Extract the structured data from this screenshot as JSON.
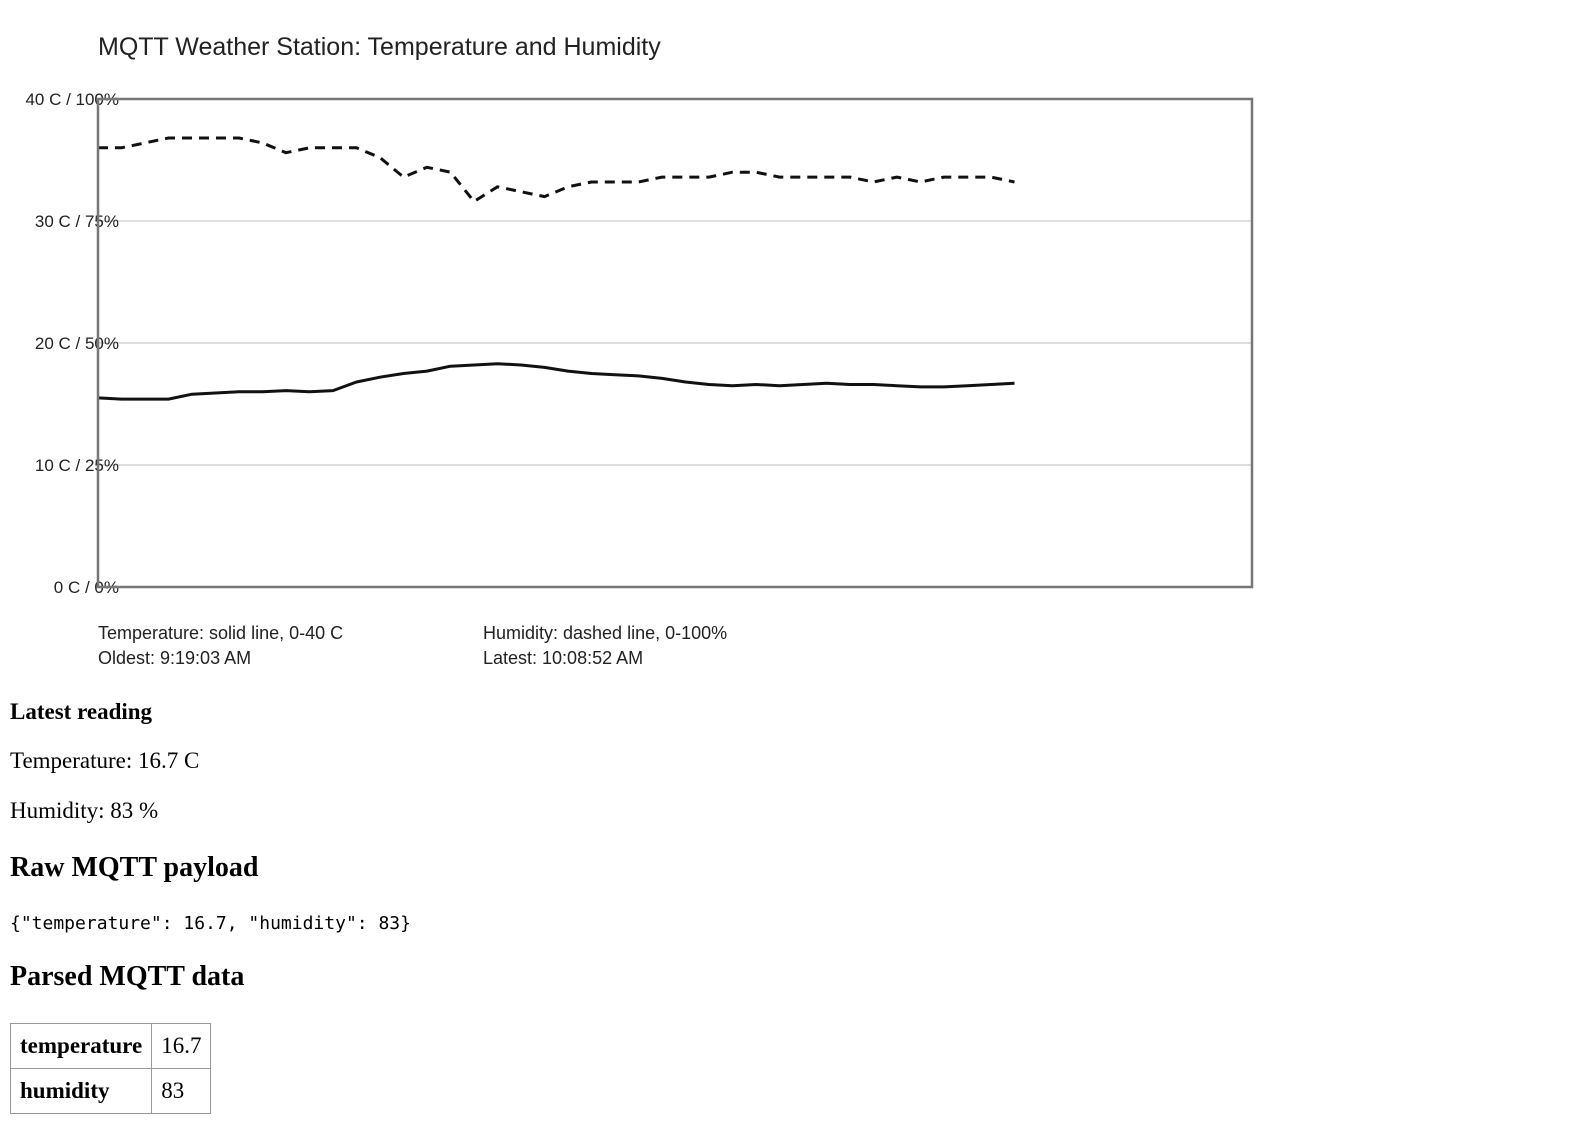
{
  "chart": {
    "title": "MQTT Weather Station: Temperature and Humidity",
    "y_ticks": [
      "0 C / 0%",
      "10 C / 25%",
      "20 C / 50%",
      "30 C / 75%",
      "40 C / 100%"
    ],
    "legend": {
      "temperature_desc": "Temperature: solid line, 0-40 C",
      "humidity_desc": "Humidity: dashed line, 0-100%",
      "oldest": "Oldest: 9:19:03 AM",
      "latest": "Latest: 10:08:52 AM"
    }
  },
  "chart_data": {
    "type": "line",
    "title": "MQTT Weather Station: Temperature and Humidity",
    "ylim": [
      0,
      40
    ],
    "y2lim": [
      0,
      100
    ],
    "grid": true,
    "x_range": [
      "9:19:03 AM",
      "10:08:52 AM"
    ],
    "n_points": 40,
    "series": [
      {
        "style": "solid",
        "values": [
          15.5,
          15.4,
          15.4,
          15.4,
          15.8,
          15.9,
          16.0,
          16.0,
          16.1,
          16.0,
          16.1,
          16.8,
          17.2,
          17.5,
          17.7,
          18.1,
          18.2,
          18.3,
          18.2,
          18.0,
          17.7,
          17.5,
          17.4,
          17.3,
          17.1,
          16.8,
          16.6,
          16.5,
          16.6,
          16.5,
          16.6,
          16.7,
          16.6,
          16.6,
          16.5,
          16.4,
          16.4,
          16.5,
          16.6,
          16.7
        ]
      },
      {
        "style": "dashed",
        "values": [
          90,
          90,
          91,
          92,
          92,
          92,
          92,
          91,
          89,
          90,
          90,
          90,
          88,
          84,
          86,
          85,
          79,
          82,
          81,
          80,
          82,
          83,
          83,
          83,
          84,
          84,
          84,
          85,
          85,
          84,
          84,
          84,
          84,
          83,
          84,
          83,
          84,
          84,
          84,
          83
        ]
      }
    ]
  },
  "latest": {
    "heading": "Latest reading",
    "temperature_text": "Temperature: 16.7 C",
    "humidity_text": "Humidity: 83 %"
  },
  "raw": {
    "heading": "Raw MQTT payload",
    "payload": "{\"temperature\": 16.7, \"humidity\": 83}"
  },
  "parsed": {
    "heading": "Parsed MQTT data",
    "rows": [
      {
        "key": "temperature",
        "value": "16.7"
      },
      {
        "key": "humidity",
        "value": "83"
      }
    ]
  }
}
